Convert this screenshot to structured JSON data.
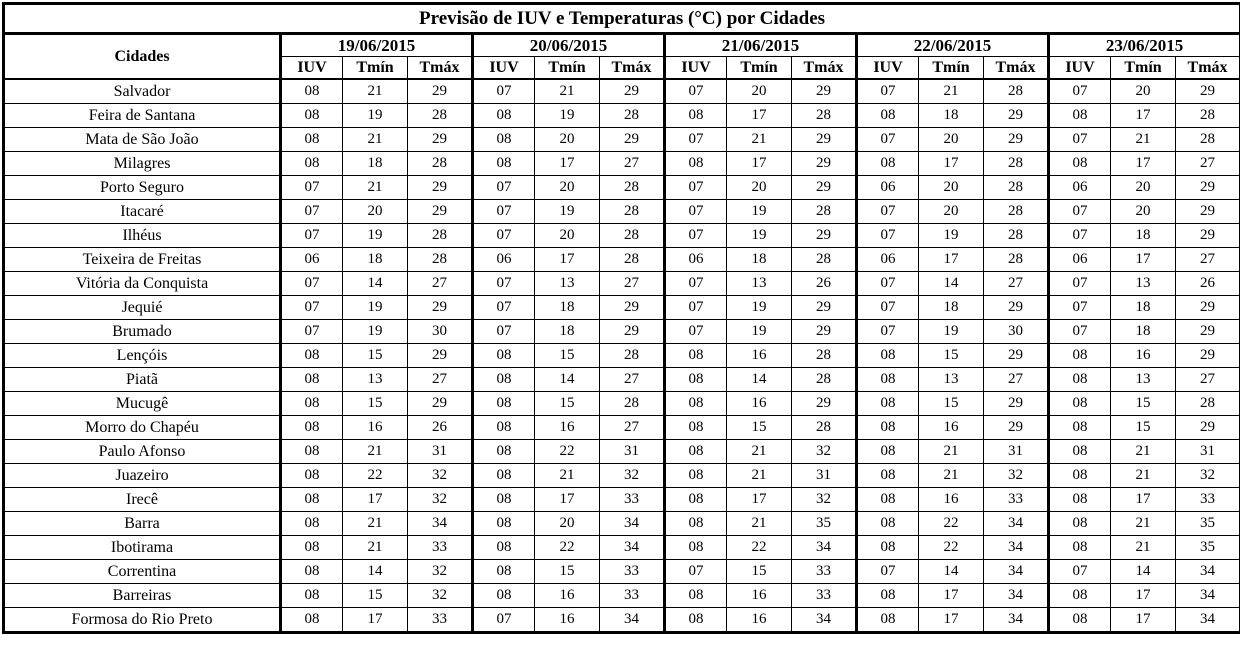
{
  "chart_data": {
    "type": "table",
    "title": "Previsão de IUV e Temperaturas (°C) por Cidades",
    "city_header": "Cidades",
    "dates": [
      "19/06/2015",
      "20/06/2015",
      "21/06/2015",
      "22/06/2015",
      "23/06/2015"
    ],
    "sub_headers": [
      "IUV",
      "Tmín",
      "Tmáx"
    ],
    "rows": [
      {
        "city": "Salvador",
        "values": [
          "08",
          "21",
          "29",
          "07",
          "21",
          "29",
          "07",
          "20",
          "29",
          "07",
          "21",
          "28",
          "07",
          "20",
          "29"
        ]
      },
      {
        "city": "Feira de Santana",
        "values": [
          "08",
          "19",
          "28",
          "08",
          "19",
          "28",
          "08",
          "17",
          "28",
          "08",
          "18",
          "29",
          "08",
          "17",
          "28"
        ]
      },
      {
        "city": "Mata de São João",
        "values": [
          "08",
          "21",
          "29",
          "08",
          "20",
          "29",
          "07",
          "21",
          "29",
          "07",
          "20",
          "29",
          "07",
          "21",
          "28"
        ]
      },
      {
        "city": "Milagres",
        "values": [
          "08",
          "18",
          "28",
          "08",
          "17",
          "27",
          "08",
          "17",
          "29",
          "08",
          "17",
          "28",
          "08",
          "17",
          "27"
        ]
      },
      {
        "city": "Porto Seguro",
        "values": [
          "07",
          "21",
          "29",
          "07",
          "20",
          "28",
          "07",
          "20",
          "29",
          "06",
          "20",
          "28",
          "06",
          "20",
          "29"
        ]
      },
      {
        "city": "Itacaré",
        "values": [
          "07",
          "20",
          "29",
          "07",
          "19",
          "28",
          "07",
          "19",
          "28",
          "07",
          "20",
          "28",
          "07",
          "20",
          "29"
        ]
      },
      {
        "city": "Ilhéus",
        "values": [
          "07",
          "19",
          "28",
          "07",
          "20",
          "28",
          "07",
          "19",
          "29",
          "07",
          "19",
          "28",
          "07",
          "18",
          "29"
        ]
      },
      {
        "city": "Teixeira de Freitas",
        "values": [
          "06",
          "18",
          "28",
          "06",
          "17",
          "28",
          "06",
          "18",
          "28",
          "06",
          "17",
          "28",
          "06",
          "17",
          "27"
        ]
      },
      {
        "city": "Vitória da Conquista",
        "values": [
          "07",
          "14",
          "27",
          "07",
          "13",
          "27",
          "07",
          "13",
          "26",
          "07",
          "14",
          "27",
          "07",
          "13",
          "26"
        ]
      },
      {
        "city": "Jequié",
        "values": [
          "07",
          "19",
          "29",
          "07",
          "18",
          "29",
          "07",
          "19",
          "29",
          "07",
          "18",
          "29",
          "07",
          "18",
          "29"
        ]
      },
      {
        "city": "Brumado",
        "values": [
          "07",
          "19",
          "30",
          "07",
          "18",
          "29",
          "07",
          "19",
          "29",
          "07",
          "19",
          "30",
          "07",
          "18",
          "29"
        ]
      },
      {
        "city": "Lençóis",
        "values": [
          "08",
          "15",
          "29",
          "08",
          "15",
          "28",
          "08",
          "16",
          "28",
          "08",
          "15",
          "29",
          "08",
          "16",
          "29"
        ]
      },
      {
        "city": "Piatã",
        "values": [
          "08",
          "13",
          "27",
          "08",
          "14",
          "27",
          "08",
          "14",
          "28",
          "08",
          "13",
          "27",
          "08",
          "13",
          "27"
        ]
      },
      {
        "city": "Mucugê",
        "values": [
          "08",
          "15",
          "29",
          "08",
          "15",
          "28",
          "08",
          "16",
          "29",
          "08",
          "15",
          "29",
          "08",
          "15",
          "28"
        ]
      },
      {
        "city": "Morro do Chapéu",
        "values": [
          "08",
          "16",
          "26",
          "08",
          "16",
          "27",
          "08",
          "15",
          "28",
          "08",
          "16",
          "29",
          "08",
          "15",
          "29"
        ]
      },
      {
        "city": "Paulo Afonso",
        "values": [
          "08",
          "21",
          "31",
          "08",
          "22",
          "31",
          "08",
          "21",
          "32",
          "08",
          "21",
          "31",
          "08",
          "21",
          "31"
        ]
      },
      {
        "city": "Juazeiro",
        "values": [
          "08",
          "22",
          "32",
          "08",
          "21",
          "32",
          "08",
          "21",
          "31",
          "08",
          "21",
          "32",
          "08",
          "21",
          "32"
        ]
      },
      {
        "city": "Irecê",
        "values": [
          "08",
          "17",
          "32",
          "08",
          "17",
          "33",
          "08",
          "17",
          "32",
          "08",
          "16",
          "33",
          "08",
          "17",
          "33"
        ]
      },
      {
        "city": "Barra",
        "values": [
          "08",
          "21",
          "34",
          "08",
          "20",
          "34",
          "08",
          "21",
          "35",
          "08",
          "22",
          "34",
          "08",
          "21",
          "35"
        ]
      },
      {
        "city": "Ibotirama",
        "values": [
          "08",
          "21",
          "33",
          "08",
          "22",
          "34",
          "08",
          "22",
          "34",
          "08",
          "22",
          "34",
          "08",
          "21",
          "35"
        ]
      },
      {
        "city": "Correntina",
        "values": [
          "08",
          "14",
          "32",
          "08",
          "15",
          "33",
          "07",
          "15",
          "33",
          "07",
          "14",
          "34",
          "07",
          "14",
          "34"
        ]
      },
      {
        "city": "Barreiras",
        "values": [
          "08",
          "15",
          "32",
          "08",
          "16",
          "33",
          "08",
          "16",
          "33",
          "08",
          "17",
          "34",
          "08",
          "17",
          "34"
        ]
      },
      {
        "city": "Formosa do Rio Preto",
        "values": [
          "08",
          "17",
          "33",
          "07",
          "16",
          "34",
          "08",
          "16",
          "34",
          "08",
          "17",
          "34",
          "08",
          "17",
          "34"
        ]
      }
    ],
    "layout": {
      "border_color": "#000000",
      "background_color": "#ffffff",
      "text_color": "#000000"
    }
  }
}
